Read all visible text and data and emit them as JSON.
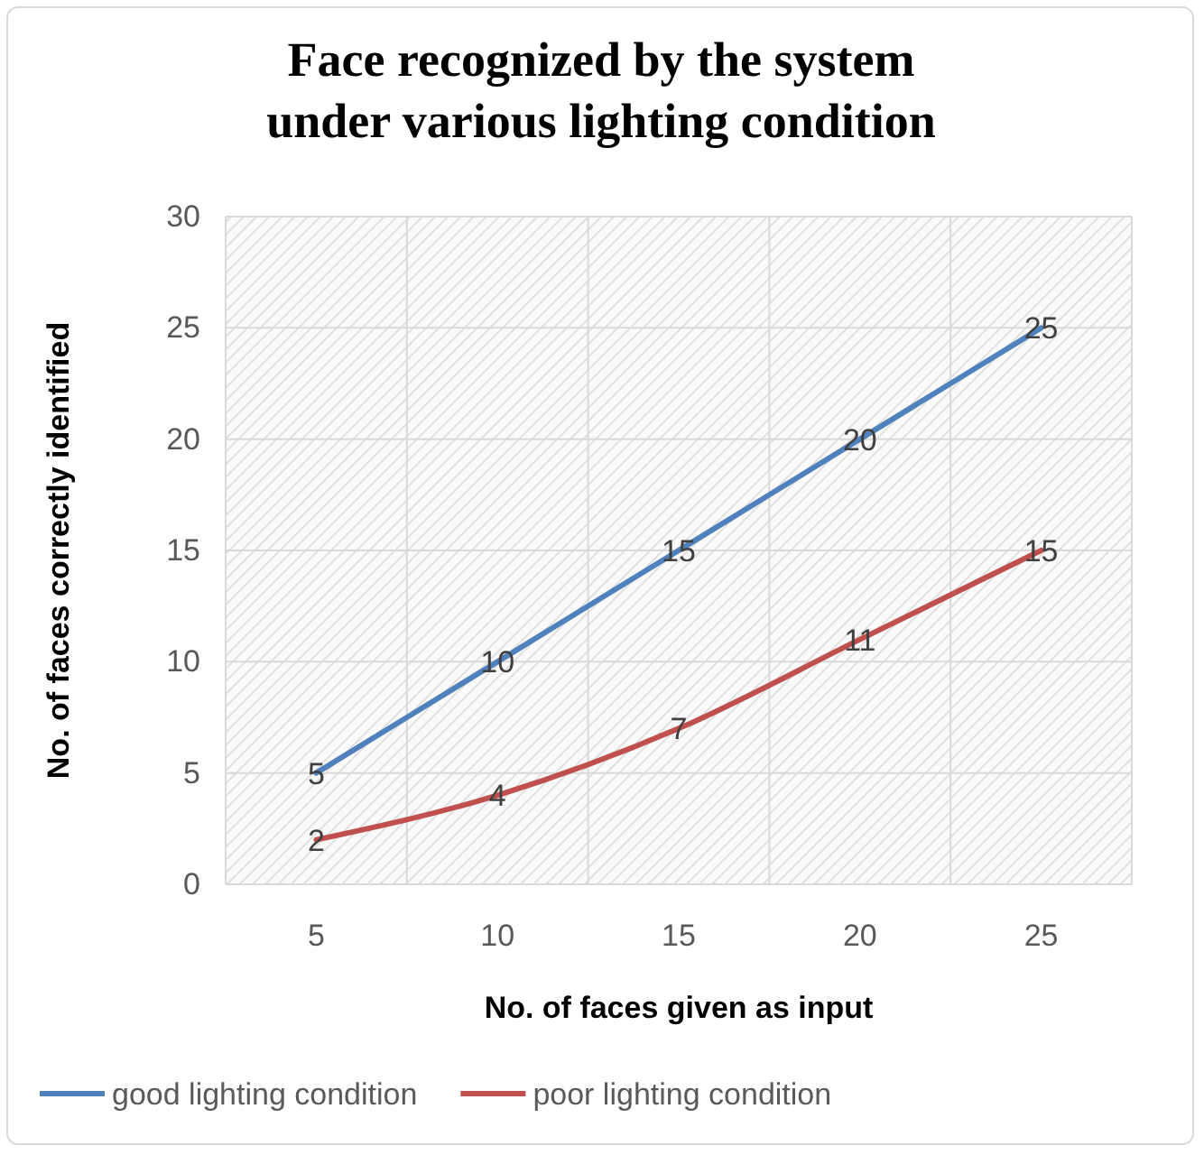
{
  "chart_data": {
    "type": "line",
    "title": "Face recognized  by the system under various lighting condition",
    "xlabel": "No. of faces given as input",
    "ylabel": "No. of faces correctly identified",
    "categories": [
      "5",
      "10",
      "15",
      "20",
      "25"
    ],
    "series": [
      {
        "name": "good lighting condition",
        "color": "#4f81bd",
        "values": [
          5,
          10,
          15,
          20,
          25
        ]
      },
      {
        "name": "poor lighting condition",
        "color": "#c0504d",
        "values": [
          2,
          4,
          7,
          11,
          15
        ]
      }
    ],
    "ylim": [
      0,
      30
    ],
    "yticks": [
      0,
      5,
      10,
      15,
      20,
      25,
      30
    ],
    "grid": true,
    "legend": "bottom",
    "data_labels": true,
    "marker": "none",
    "line_style": "solid"
  }
}
